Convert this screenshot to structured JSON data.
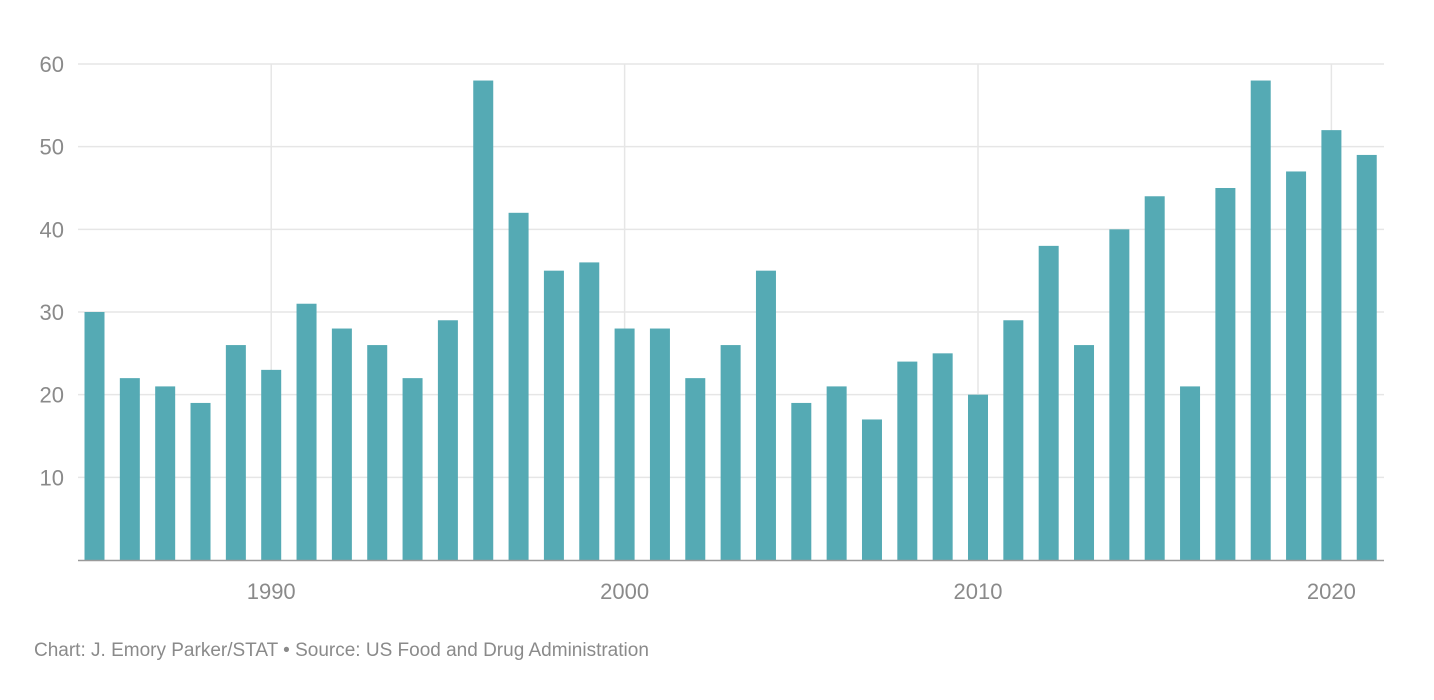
{
  "chart_data": {
    "type": "bar",
    "title": "",
    "xlabel": "",
    "ylabel": "",
    "x": [
      1985,
      1986,
      1987,
      1988,
      1989,
      1990,
      1991,
      1992,
      1993,
      1994,
      1995,
      1996,
      1997,
      1998,
      1999,
      2000,
      2001,
      2002,
      2003,
      2004,
      2005,
      2006,
      2007,
      2008,
      2009,
      2010,
      2011,
      2012,
      2013,
      2014,
      2015,
      2016,
      2017,
      2018,
      2019,
      2020,
      2021
    ],
    "values": [
      30,
      22,
      21,
      19,
      26,
      23,
      31,
      28,
      26,
      22,
      29,
      58,
      42,
      35,
      36,
      28,
      28,
      22,
      26,
      35,
      19,
      21,
      17,
      24,
      25,
      20,
      29,
      38,
      26,
      40,
      44,
      21,
      45,
      58,
      47,
      52,
      49
    ],
    "xlim": [
      1984.5,
      2021.5
    ],
    "ylim": [
      0,
      60
    ],
    "y_ticks": [
      10,
      20,
      30,
      40,
      50,
      60
    ],
    "x_ticks": [
      1990,
      2000,
      2010,
      2020
    ],
    "y_tick_labels": [
      "10",
      "20",
      "30",
      "40",
      "50",
      "60"
    ],
    "x_tick_labels": [
      "1990",
      "2000",
      "2010",
      "2020"
    ],
    "bar_color": "#55aab4",
    "grid": true
  },
  "footer": {
    "credit": "Chart: J. Emory Parker/STAT • Source: US Food and Drug Administration"
  }
}
